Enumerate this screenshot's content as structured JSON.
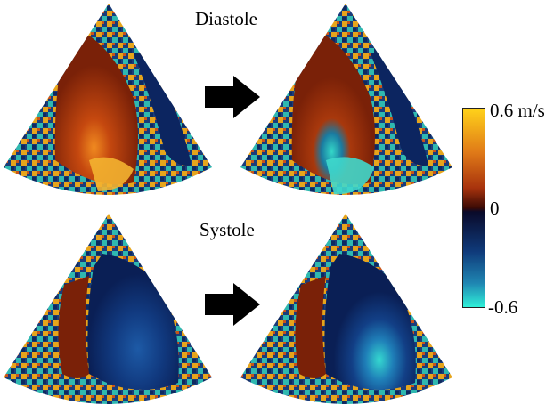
{
  "figure": {
    "panels": [
      {
        "phase": "Diastole",
        "state": "before"
      },
      {
        "phase": "Diastole",
        "state": "after"
      },
      {
        "phase": "Systole",
        "state": "before"
      },
      {
        "phase": "Systole",
        "state": "after"
      }
    ],
    "row_labels": {
      "diastole": "Diastole",
      "systole": "Systole"
    },
    "colorbar": {
      "max_label": "0.6 m/s",
      "zero_label": "0",
      "min_label": "-0.6",
      "colors": {
        "max": "#ffd21a",
        "upper_mid": "#c84a10",
        "zero_upper": "#3a0a05",
        "zero": "#0a0a2a",
        "lower_mid": "#0f3a7a",
        "min": "#2ff0d8"
      }
    }
  }
}
